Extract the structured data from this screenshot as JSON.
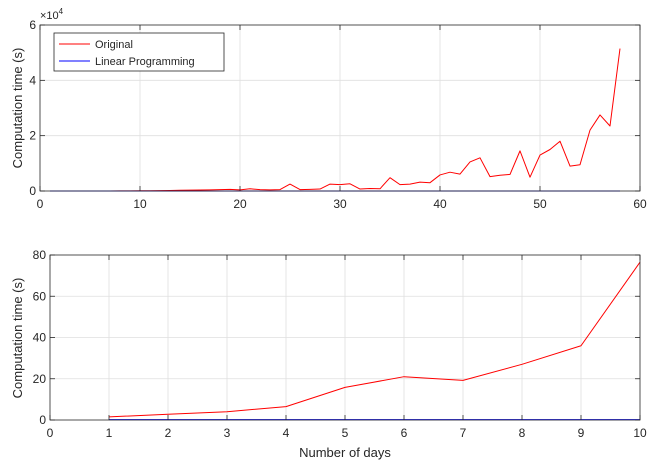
{
  "chart_data": [
    {
      "type": "line",
      "xlabel": "",
      "ylabel": "Computation time (s)",
      "xlim": [
        0,
        60
      ],
      "ylim": [
        0,
        60000
      ],
      "x_ticks": [
        "0",
        "10",
        "20",
        "30",
        "40",
        "50",
        "60"
      ],
      "y_ticks": [
        "0",
        "2",
        "4",
        "6"
      ],
      "y_multiplier_base": "×10",
      "y_multiplier_exponent": "4",
      "grid": true,
      "legend_position": "top-left",
      "series": [
        {
          "name": "Original",
          "color": "#ff0000",
          "x": [
            1,
            2,
            3,
            4,
            5,
            6,
            7,
            8,
            9,
            10,
            11,
            12,
            13,
            14,
            15,
            16,
            17,
            18,
            19,
            20,
            21,
            22,
            23,
            24,
            25,
            26,
            27,
            28,
            29,
            30,
            31,
            32,
            33,
            34,
            35,
            36,
            37,
            38,
            39,
            40,
            41,
            42,
            43,
            44,
            45,
            46,
            47,
            48,
            49,
            50,
            51,
            52,
            53,
            54,
            55,
            56,
            57,
            58
          ],
          "y": [
            1,
            3,
            4,
            6,
            16,
            21,
            19,
            27,
            36,
            77,
            100,
            150,
            200,
            250,
            300,
            350,
            400,
            500,
            600,
            400,
            800,
            500,
            400,
            500,
            2500,
            500,
            600,
            700,
            2500,
            2300,
            2600,
            700,
            900,
            800,
            4800,
            2300,
            2500,
            3200,
            3000,
            5800,
            6800,
            6100,
            10500,
            12000,
            5200,
            5700,
            6000,
            14500,
            5000,
            13000,
            15000,
            18000,
            9000,
            9500,
            22000,
            27500,
            23500,
            51500
          ]
        },
        {
          "name": "Linear Programming",
          "color": "#0000ff",
          "x": [
            1,
            58
          ],
          "y": [
            0,
            0
          ]
        }
      ]
    },
    {
      "type": "line",
      "xlabel": "Number of days",
      "ylabel": "Computation time (s)",
      "xlim": [
        0,
        10
      ],
      "ylim": [
        0,
        80
      ],
      "x_ticks": [
        "0",
        "1",
        "2",
        "3",
        "4",
        "5",
        "6",
        "7",
        "8",
        "9",
        "10"
      ],
      "y_ticks": [
        "0",
        "20",
        "40",
        "60",
        "80"
      ],
      "grid": true,
      "series": [
        {
          "color": "#ff0000",
          "x": [
            1,
            2,
            3,
            4,
            5,
            6,
            7,
            8,
            9,
            10
          ],
          "y": [
            1.5,
            2.8,
            4,
            6.5,
            15.8,
            21,
            19.2,
            27,
            36,
            76.5
          ]
        },
        {
          "color": "#0000ff",
          "x": [
            1,
            10
          ],
          "y": [
            0.2,
            0.2
          ]
        }
      ]
    }
  ]
}
